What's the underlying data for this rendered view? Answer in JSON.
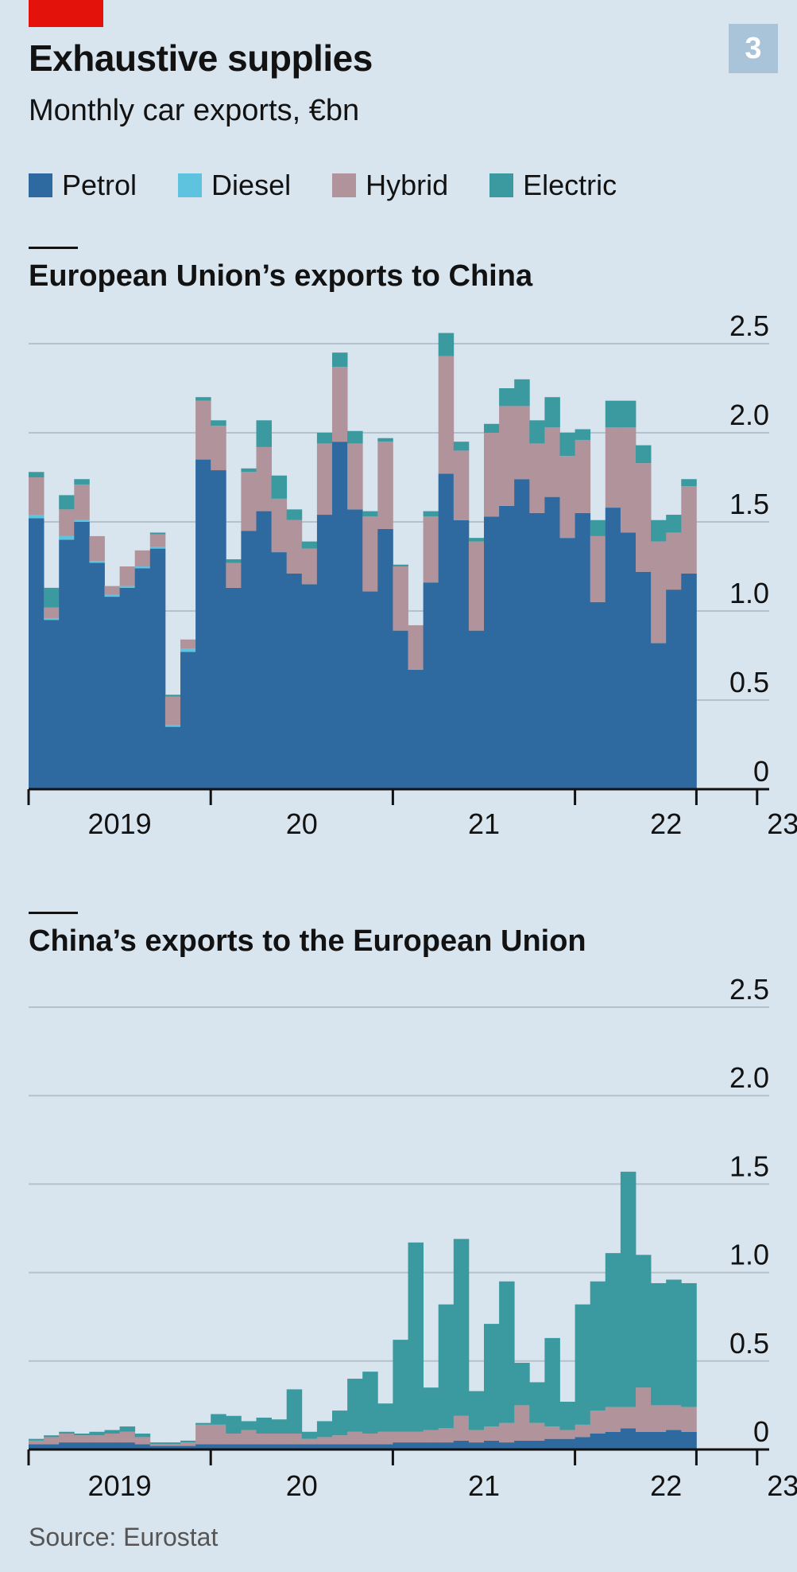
{
  "header": {
    "title": "Exhaustive supplies",
    "subtitle": "Monthly car exports, €bn",
    "figure_number": "3"
  },
  "legend": [
    {
      "label": "Petrol",
      "color": "#2e6aa0"
    },
    {
      "label": "Diesel",
      "color": "#5dc3de"
    },
    {
      "label": "Hybrid",
      "color": "#b0939b"
    },
    {
      "label": "Electric",
      "color": "#3a9aa0"
    }
  ],
  "source": "Source: Eurostat",
  "chart_data": [
    {
      "type": "bar",
      "stacked": true,
      "title": "European Union’s exports to China",
      "ylim": [
        0,
        2.5
      ],
      "yticks": [
        "0",
        "0.5",
        "1.0",
        "1.5",
        "2.0",
        "2.5"
      ],
      "xtick_labels": [
        "2019",
        "20",
        "21",
        "22",
        "23"
      ],
      "x_start": "2019-01",
      "grid": true,
      "series": [
        {
          "name": "Petrol",
          "color": "#2e6aa0",
          "values": [
            1.52,
            0.95,
            1.4,
            1.5,
            1.27,
            1.08,
            1.13,
            1.24,
            1.35,
            0.35,
            0.77,
            1.85,
            1.79,
            1.13,
            1.45,
            1.56,
            1.33,
            1.21,
            1.15,
            1.54,
            1.95,
            1.57,
            1.11,
            1.46,
            0.89,
            0.67,
            1.16,
            1.77,
            1.51,
            0.89,
            1.53,
            1.59,
            1.74,
            1.55,
            1.64,
            1.41,
            1.55,
            1.05,
            1.58,
            1.44,
            1.22,
            0.82,
            1.12,
            1.21
          ]
        },
        {
          "name": "Diesel",
          "color": "#5dc3de",
          "values": [
            0.02,
            0.01,
            0.02,
            0.01,
            0.01,
            0.01,
            0.01,
            0.01,
            0.01,
            0.01,
            0.02,
            0.0,
            0.0,
            0.0,
            0.0,
            0.0,
            0.0,
            0.0,
            0.0,
            0.0,
            0.0,
            0.0,
            0.0,
            0.0,
            0.0,
            0.0,
            0.0,
            0.0,
            0.0,
            0.0,
            0.0,
            0.0,
            0.0,
            0.0,
            0.0,
            0.0,
            0.0,
            0.0,
            0.0,
            0.0,
            0.0,
            0.0,
            0.0,
            0.0
          ]
        },
        {
          "name": "Hybrid",
          "color": "#b0939b",
          "values": [
            0.21,
            0.06,
            0.15,
            0.2,
            0.14,
            0.05,
            0.11,
            0.09,
            0.07,
            0.16,
            0.05,
            0.33,
            0.25,
            0.14,
            0.33,
            0.36,
            0.3,
            0.3,
            0.2,
            0.4,
            0.42,
            0.37,
            0.42,
            0.49,
            0.36,
            0.25,
            0.37,
            0.66,
            0.39,
            0.5,
            0.47,
            0.56,
            0.41,
            0.39,
            0.39,
            0.46,
            0.41,
            0.37,
            0.45,
            0.59,
            0.61,
            0.57,
            0.32,
            0.49
          ]
        },
        {
          "name": "Electric",
          "color": "#3a9aa0",
          "values": [
            0.03,
            0.11,
            0.08,
            0.03,
            0.0,
            0.0,
            0.0,
            0.0,
            0.01,
            0.01,
            0.0,
            0.02,
            0.03,
            0.02,
            0.02,
            0.15,
            0.13,
            0.06,
            0.04,
            0.06,
            0.08,
            0.07,
            0.03,
            0.02,
            0.01,
            0.0,
            0.03,
            0.13,
            0.05,
            0.02,
            0.05,
            0.1,
            0.15,
            0.13,
            0.17,
            0.13,
            0.06,
            0.09,
            0.15,
            0.15,
            0.1,
            0.12,
            0.1,
            0.04
          ]
        }
      ]
    },
    {
      "type": "bar",
      "stacked": true,
      "title": "China’s exports to the European Union",
      "ylim": [
        0,
        2.5
      ],
      "yticks": [
        "0",
        "0.5",
        "1.0",
        "1.5",
        "2.0",
        "2.5"
      ],
      "xtick_labels": [
        "2019",
        "20",
        "21",
        "22",
        "23"
      ],
      "x_start": "2019-01",
      "grid": true,
      "series": [
        {
          "name": "Petrol",
          "color": "#2e6aa0",
          "values": [
            0.03,
            0.03,
            0.04,
            0.04,
            0.04,
            0.04,
            0.04,
            0.03,
            0.02,
            0.02,
            0.02,
            0.03,
            0.03,
            0.03,
            0.03,
            0.03,
            0.03,
            0.03,
            0.03,
            0.03,
            0.03,
            0.03,
            0.03,
            0.03,
            0.04,
            0.04,
            0.04,
            0.04,
            0.05,
            0.04,
            0.05,
            0.04,
            0.05,
            0.05,
            0.06,
            0.06,
            0.07,
            0.09,
            0.1,
            0.12,
            0.1,
            0.1,
            0.11,
            0.1
          ]
        },
        {
          "name": "Diesel",
          "color": "#5dc3de",
          "values": [
            0,
            0,
            0,
            0,
            0,
            0,
            0,
            0,
            0,
            0,
            0,
            0,
            0,
            0,
            0,
            0,
            0,
            0,
            0,
            0,
            0,
            0,
            0,
            0,
            0,
            0,
            0,
            0,
            0,
            0,
            0,
            0,
            0,
            0,
            0,
            0,
            0,
            0,
            0,
            0,
            0,
            0,
            0,
            0
          ]
        },
        {
          "name": "Hybrid",
          "color": "#b0939b",
          "values": [
            0.02,
            0.04,
            0.05,
            0.04,
            0.04,
            0.05,
            0.06,
            0.04,
            0.01,
            0.01,
            0.02,
            0.11,
            0.11,
            0.06,
            0.08,
            0.06,
            0.06,
            0.06,
            0.03,
            0.04,
            0.05,
            0.07,
            0.06,
            0.07,
            0.06,
            0.06,
            0.07,
            0.08,
            0.14,
            0.07,
            0.08,
            0.11,
            0.2,
            0.1,
            0.07,
            0.05,
            0.07,
            0.13,
            0.14,
            0.12,
            0.25,
            0.15,
            0.14,
            0.14
          ]
        },
        {
          "name": "Electric",
          "color": "#3a9aa0",
          "values": [
            0.01,
            0.01,
            0.01,
            0.01,
            0.02,
            0.02,
            0.03,
            0.02,
            0.01,
            0.01,
            0.01,
            0.01,
            0.06,
            0.1,
            0.05,
            0.09,
            0.08,
            0.25,
            0.04,
            0.09,
            0.14,
            0.3,
            0.35,
            0.16,
            0.52,
            1.07,
            0.24,
            0.7,
            1.0,
            0.22,
            0.58,
            0.8,
            0.24,
            0.23,
            0.5,
            0.16,
            0.68,
            0.73,
            0.87,
            1.33,
            0.75,
            0.69,
            0.71,
            0.7
          ]
        }
      ]
    }
  ]
}
